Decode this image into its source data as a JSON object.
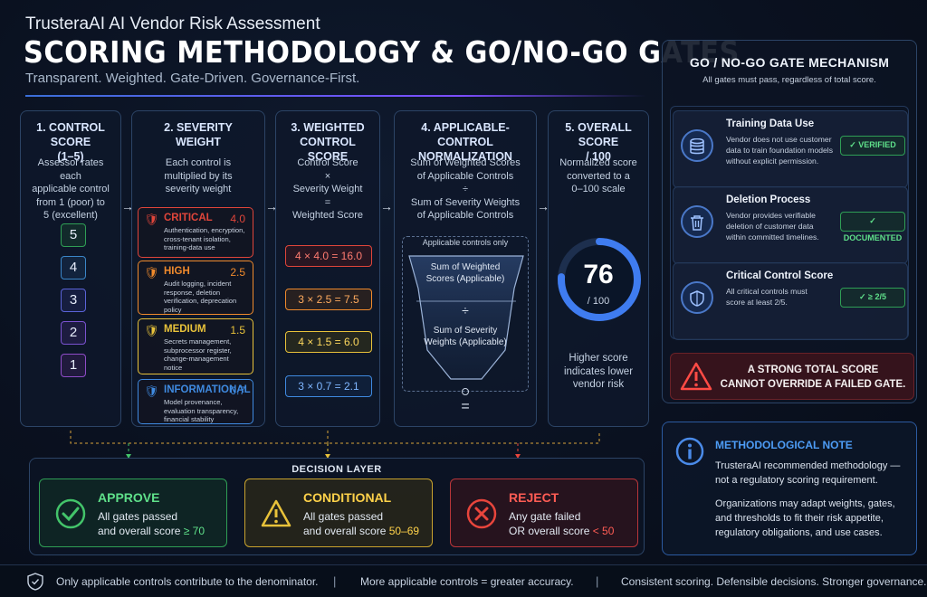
{
  "header": {
    "brand": "TrusteraAI AI Vendor Risk Assessment",
    "title": "SCORING METHODOLOGY & GO/NO-GO GATES",
    "tagline": "Transparent. Weighted. Gate-Driven. Governance-First."
  },
  "steps": {
    "control_score": {
      "title_1": "1. CONTROL SCORE",
      "title_2": "(1–5)",
      "desc": [
        "Assessor rates each",
        "applicable control",
        "from 1 (poor) to",
        "5 (excellent)"
      ],
      "scores": [
        "5",
        "4",
        "3",
        "2",
        "1"
      ]
    },
    "severity": {
      "title_1": "2. SEVERITY",
      "title_2": "WEIGHT",
      "desc": [
        "Each control is",
        "multiplied by its",
        "severity weight"
      ],
      "levels": [
        {
          "name": "CRITICAL",
          "value": "4.0",
          "color": "#e0453a",
          "desc": [
            "Authentication, encryption,",
            "cross-tenant isolation,",
            "training-data use"
          ]
        },
        {
          "name": "HIGH",
          "value": "2.5",
          "color": "#f08a2c",
          "desc": [
            "Audit logging, incident",
            "response, deletion",
            "verification, deprecation",
            "policy"
          ]
        },
        {
          "name": "MEDIUM",
          "value": "1.5",
          "color": "#e8c23a",
          "desc": [
            "Secrets management,",
            "subprocessor register,",
            "change-management",
            "notice"
          ]
        },
        {
          "name": "INFORMATIONAL",
          "value": "0.7",
          "color": "#3f8ae0",
          "desc": [
            "Model provenance,",
            "evaluation transparency,",
            "financial stability"
          ]
        }
      ]
    },
    "weighted": {
      "title_1": "3. WEIGHTED",
      "title_2": "CONTROL SCORE",
      "desc": [
        "Control Score",
        "×",
        "Severity Weight",
        "=",
        "Weighted Score"
      ],
      "examples": [
        "4 × 4.0  =  16.0",
        "3 × 2.5  =  7.5",
        "4 × 1.5  =  6.0",
        "3 × 0.7  =  2.1"
      ]
    },
    "normalization": {
      "title_1": "4. APPLICABLE-CONTROL",
      "title_2": "NORMALIZATION",
      "desc": [
        "Sum of Weighted Scores",
        "of Applicable Controls",
        "÷",
        "Sum of Severity Weights",
        "of Applicable Controls"
      ],
      "funnel_label": "Applicable controls only",
      "funnel_top": [
        "Sum of Weighted",
        "Scores (Applicable)"
      ],
      "funnel_div": "÷",
      "funnel_bottom": [
        "Sum of Severity",
        "Weights (Applicable)"
      ],
      "equals": "="
    },
    "overall": {
      "title_1": "5. OVERALL SCORE",
      "title_2": "/ 100",
      "desc": [
        "Normalized score",
        "converted to a",
        "0–100 scale"
      ],
      "score": 76,
      "score_text": "76",
      "out_of": "/ 100",
      "note": [
        "Higher score",
        "indicates lower",
        "vendor risk"
      ]
    }
  },
  "gates": {
    "title": "GO / NO-GO GATE MECHANISM",
    "subtitle": "All gates must pass, regardless of total score.",
    "items": [
      {
        "name": "Training Data Use",
        "desc": [
          "Vendor does not use customer",
          "data to train foundation models",
          "without explicit permission."
        ],
        "badge": "VERIFIED",
        "icon": "database-icon"
      },
      {
        "name": "Deletion Process",
        "desc": [
          "Vendor provides verifiable",
          "deletion of customer data",
          "within committed timelines."
        ],
        "badge": "DOCUMENTED",
        "icon": "trash-icon"
      },
      {
        "name": "Critical Control Score",
        "desc": [
          "All critical controls must",
          "score at least  2/5."
        ],
        "badge": "≥ 2/5",
        "icon": "shield-icon"
      }
    ],
    "warning": [
      "A STRONG TOTAL SCORE",
      "CANNOT OVERRIDE A FAILED GATE."
    ]
  },
  "note": {
    "title": "METHODOLOGICAL NOTE",
    "para1": [
      "TrusteraAI recommended methodology —",
      "not a regulatory scoring requirement."
    ],
    "para2": [
      "Organizations may adapt weights, gates,",
      "and thresholds to fit their risk appetite,",
      "regulatory obligations, and use cases."
    ]
  },
  "decision": {
    "title": "DECISION LAYER",
    "outcomes": [
      {
        "name": "APPROVE",
        "line1": "All gates passed",
        "line2_prefix": "and overall score ",
        "line2_value": "≥ 70",
        "color": "#43c46a"
      },
      {
        "name": "CONDITIONAL",
        "line1": "All gates passed",
        "line2_prefix": "and overall score ",
        "line2_value": "50–69",
        "color": "#e8c23a"
      },
      {
        "name": "REJECT",
        "line1": "Any gate failed",
        "line2_prefix": "OR overall score ",
        "line2_value": "< 50",
        "color": "#e8453c"
      }
    ]
  },
  "footer": {
    "items": [
      "Only applicable controls contribute to the denominator.",
      "More applicable controls = greater accuracy.",
      "Consistent scoring. Defensible decisions. Stronger governance."
    ],
    "separator": "|"
  },
  "colors": {
    "accent": "#3a6fd8",
    "pass": "#43c46a",
    "warn": "#e8c23a",
    "fail": "#e8453c"
  }
}
